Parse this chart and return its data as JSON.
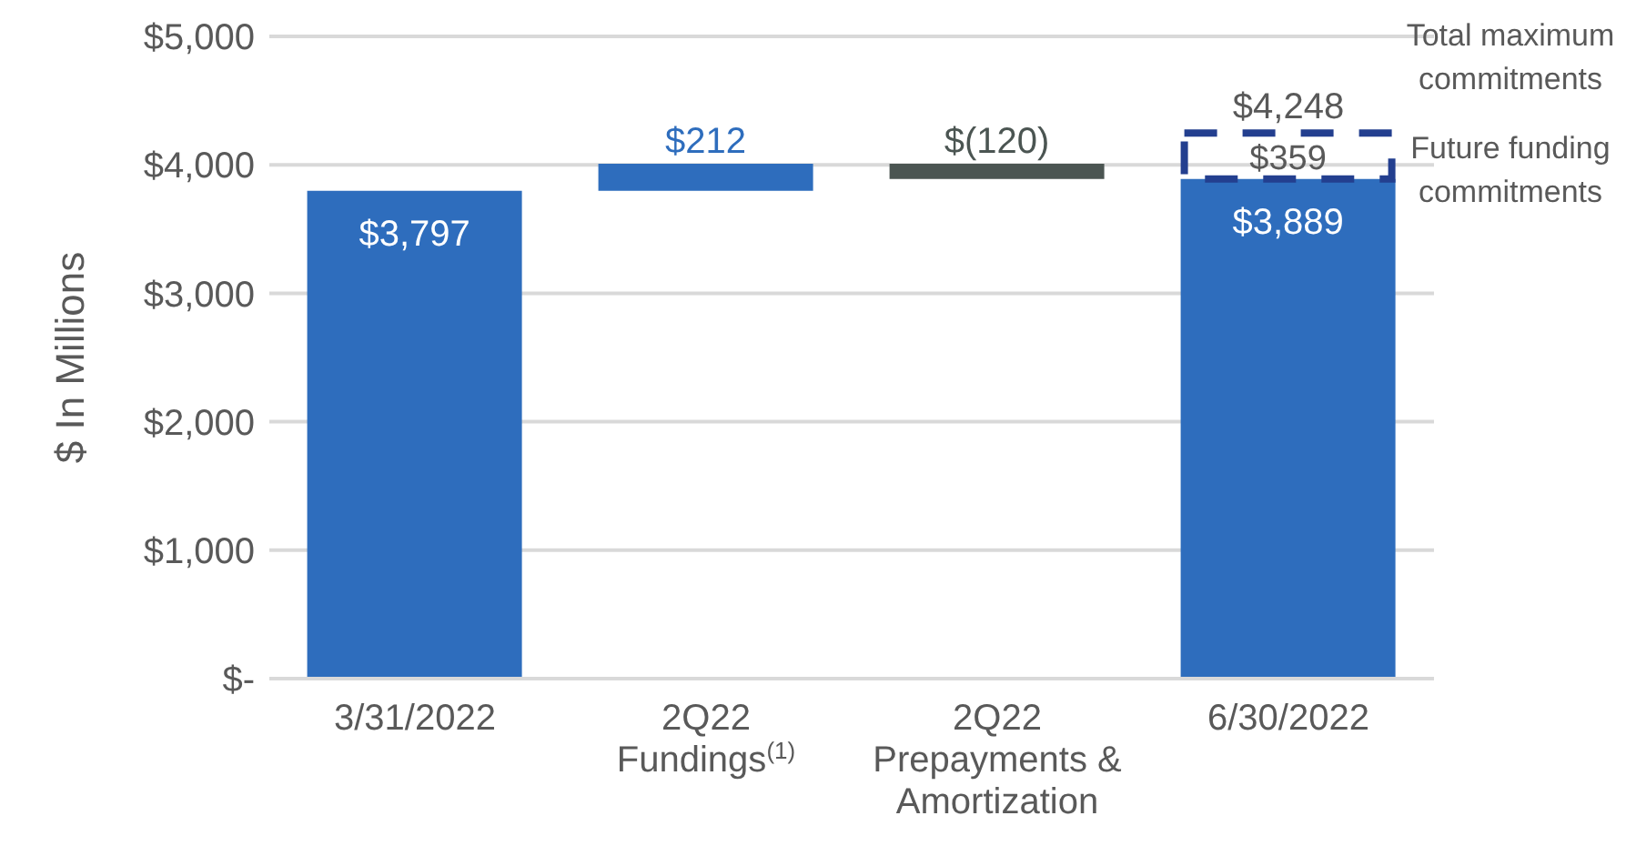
{
  "chart_data": {
    "type": "bar",
    "ylabel": "$ In Millions",
    "categories": [
      "3/31/2022",
      "2Q22 Fundings$^{(1)}$",
      "2Q22 Prepayments & Amortization",
      "6/30/2022"
    ],
    "series": [
      {
        "values": [
          3797,
          212,
          -120,
          3889
        ],
        "base": [
          0,
          3797,
          4009,
          0
        ],
        "colors": [
          "#2e6dbd",
          "#2e6dbd",
          "#4b5552",
          "#2e6dbd"
        ],
        "value_labels": [
          "$3,797",
          "$212",
          "$(120)",
          "$3,889"
        ]
      },
      {
        "values": [
          null,
          null,
          null,
          359
        ],
        "base": [
          null,
          null,
          null,
          3889
        ],
        "color": "#233f8f",
        "line_style": "dashed",
        "value_labels": [
          null,
          null,
          null,
          "$359"
        ]
      }
    ],
    "ylim": [
      0,
      5000
    ],
    "yticks": [
      {
        "value": 0,
        "label": "$-"
      },
      {
        "value": 1000,
        "label": "$1,000"
      },
      {
        "value": 2000,
        "label": "$2,000"
      },
      {
        "value": 3000,
        "label": "$3,000"
      },
      {
        "value": 4000,
        "label": "$4,000"
      },
      {
        "value": 5000,
        "label": "$5,000"
      }
    ],
    "grid": "y",
    "legend": false,
    "annotations": [
      {
        "text": "$4,248",
        "x": "6/30/2022",
        "y": 4248
      },
      "Total maximum commitments",
      "Future funding commitments"
    ]
  }
}
